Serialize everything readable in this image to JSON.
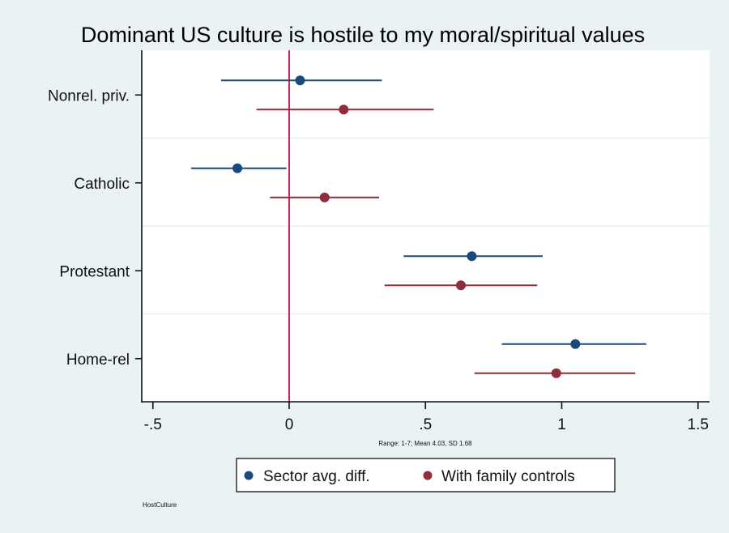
{
  "chart_data": {
    "type": "scatter",
    "subtype": "coefficient-plot-with-confidence-intervals",
    "title": "Dominant US culture is hostile to my moral/spiritual values",
    "xlabel": "",
    "ylabel": "",
    "note": "Range: 1-7; Mean 4.03, SD 1.68",
    "source_label": "HostCulture",
    "xlim": [
      -0.55,
      1.53
    ],
    "xticks": [
      -0.5,
      0,
      0.5,
      1,
      1.5
    ],
    "xtick_labels": [
      "-.5",
      "0",
      ".5",
      "1",
      "1.5"
    ],
    "reference_line_x": 0,
    "categories": [
      "Nonrel. priv.",
      "Catholic",
      "Protestant",
      "Home-rel"
    ],
    "legend_position": "bottom",
    "grid": "horizontal separators",
    "series": [
      {
        "name": "Sector avg. diff.",
        "color": "#1a4a7c",
        "values": [
          0.04,
          -0.19,
          0.67,
          1.05
        ],
        "ci_low": [
          -0.25,
          -0.36,
          0.42,
          0.78
        ],
        "ci_high": [
          0.34,
          -0.01,
          0.93,
          1.31
        ]
      },
      {
        "name": "With family controls",
        "color": "#8f2d3a",
        "values": [
          0.2,
          0.13,
          0.63,
          0.98
        ],
        "ci_low": [
          -0.12,
          -0.07,
          0.35,
          0.68
        ],
        "ci_high": [
          0.53,
          0.33,
          0.91,
          1.27
        ]
      }
    ],
    "reference_line_color": "#c8103e"
  }
}
